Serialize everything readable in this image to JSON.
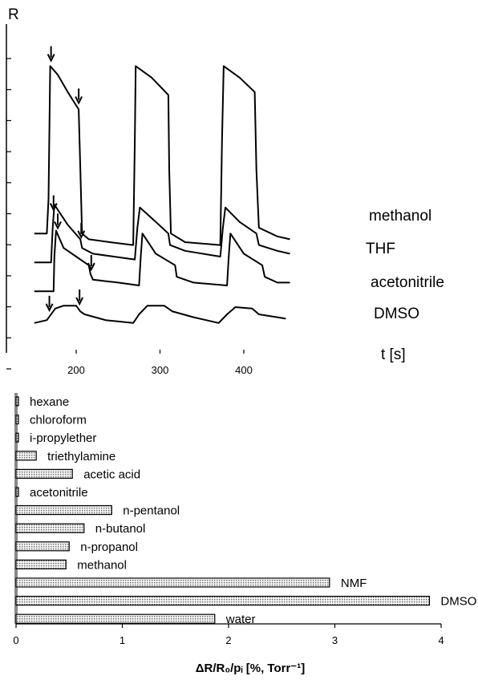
{
  "chart_data": [
    {
      "type": "line",
      "ylabel": "R",
      "xlabel": "t [s]",
      "x_ticks": [
        200,
        300,
        400
      ],
      "xlim": [
        145,
        455
      ],
      "y_ticks_count": 11,
      "series": [
        {
          "name": "methanol",
          "points": [
            [
              150,
              38
            ],
            [
              165,
              38
            ],
            [
              167,
              50
            ],
            [
              169,
              96
            ],
            [
              178,
              93
            ],
            [
              190,
              87
            ],
            [
              203,
              81
            ],
            [
              205,
              60
            ],
            [
              207,
              38
            ],
            [
              215,
              36
            ],
            [
              240,
              35
            ],
            [
              268,
              34
            ],
            [
              270,
              70
            ],
            [
              271,
              96
            ],
            [
              290,
              92
            ],
            [
              310,
              86
            ],
            [
              311,
              60
            ],
            [
              313,
              38
            ],
            [
              330,
              35
            ],
            [
              372,
              34
            ],
            [
              374,
              70
            ],
            [
              376,
              96
            ],
            [
              395,
              92
            ],
            [
              413,
              87
            ],
            [
              415,
              60
            ],
            [
              418,
              40
            ],
            [
              440,
              37
            ],
            [
              455,
              36
            ]
          ],
          "arrows": [
            170,
            203
          ]
        },
        {
          "name": "THF",
          "points": [
            [
              150,
              28
            ],
            [
              170,
              28
            ],
            [
              172,
              40
            ],
            [
              174,
              48
            ],
            [
              190,
              41
            ],
            [
              205,
              36
            ],
            [
              207,
              33
            ],
            [
              220,
              31
            ],
            [
              245,
              30
            ],
            [
              270,
              29
            ],
            [
              273,
              40
            ],
            [
              276,
              47
            ],
            [
              295,
              42
            ],
            [
              310,
              38
            ],
            [
              312,
              34
            ],
            [
              330,
              32
            ],
            [
              372,
              30
            ],
            [
              375,
              40
            ],
            [
              378,
              47
            ],
            [
              395,
              42
            ],
            [
              415,
              38
            ],
            [
              418,
              34
            ],
            [
              440,
              32
            ],
            [
              455,
              31
            ]
          ],
          "arrows": [
            173,
            206
          ]
        },
        {
          "name": "acetonitrile",
          "points": [
            [
              150,
              18
            ],
            [
              173,
              18
            ],
            [
              174,
              30
            ],
            [
              176,
              39
            ],
            [
              185,
              33
            ],
            [
              200,
              30
            ],
            [
              215,
              27
            ],
            [
              217,
              24
            ],
            [
              220,
              22
            ],
            [
              250,
              21
            ],
            [
              275,
              20
            ],
            [
              277,
              30
            ],
            [
              279,
              38
            ],
            [
              295,
              31
            ],
            [
              318,
              27
            ],
            [
              320,
              23
            ],
            [
              340,
              21
            ],
            [
              380,
              20
            ],
            [
              382,
              30
            ],
            [
              384,
              38
            ],
            [
              400,
              31
            ],
            [
              422,
              27
            ],
            [
              425,
              23
            ],
            [
              440,
              21
            ],
            [
              455,
              21
            ]
          ],
          "arrows": [
            178,
            218
          ]
        },
        {
          "name": "DMSO",
          "points": [
            [
              150,
              7
            ],
            [
              165,
              8
            ],
            [
              175,
              12
            ],
            [
              185,
              13
            ],
            [
              200,
              13
            ],
            [
              205,
              11
            ],
            [
              210,
              10
            ],
            [
              235,
              8
            ],
            [
              268,
              7
            ],
            [
              275,
              10
            ],
            [
              285,
              13
            ],
            [
              305,
              13
            ],
            [
              315,
              11
            ],
            [
              340,
              9
            ],
            [
              370,
              7
            ],
            [
              380,
              10
            ],
            [
              390,
              12.5
            ],
            [
              410,
              12
            ],
            [
              418,
              10
            ],
            [
              440,
              9
            ],
            [
              450,
              8.5
            ]
          ],
          "arrows": [
            168,
            204
          ]
        }
      ]
    },
    {
      "type": "bar",
      "orientation": "horizontal",
      "xlabel": "ΔR/R₀/pᵢ [%, Torr⁻¹]",
      "xlim": [
        0,
        4
      ],
      "x_ticks": [
        0,
        1,
        2,
        3,
        4
      ],
      "categories": [
        "hexane",
        "chloroform",
        "i-propylether",
        "triethylamine",
        "acetic acid",
        "acetonitrile",
        "n-pentanol",
        "n-butanol",
        "n-propanol",
        "methanol",
        "NMF",
        "DMSO",
        "water"
      ],
      "values": [
        0.02,
        0.02,
        0.02,
        0.19,
        0.53,
        0.02,
        0.9,
        0.64,
        0.5,
        0.47,
        2.95,
        3.89,
        1.87
      ]
    }
  ]
}
